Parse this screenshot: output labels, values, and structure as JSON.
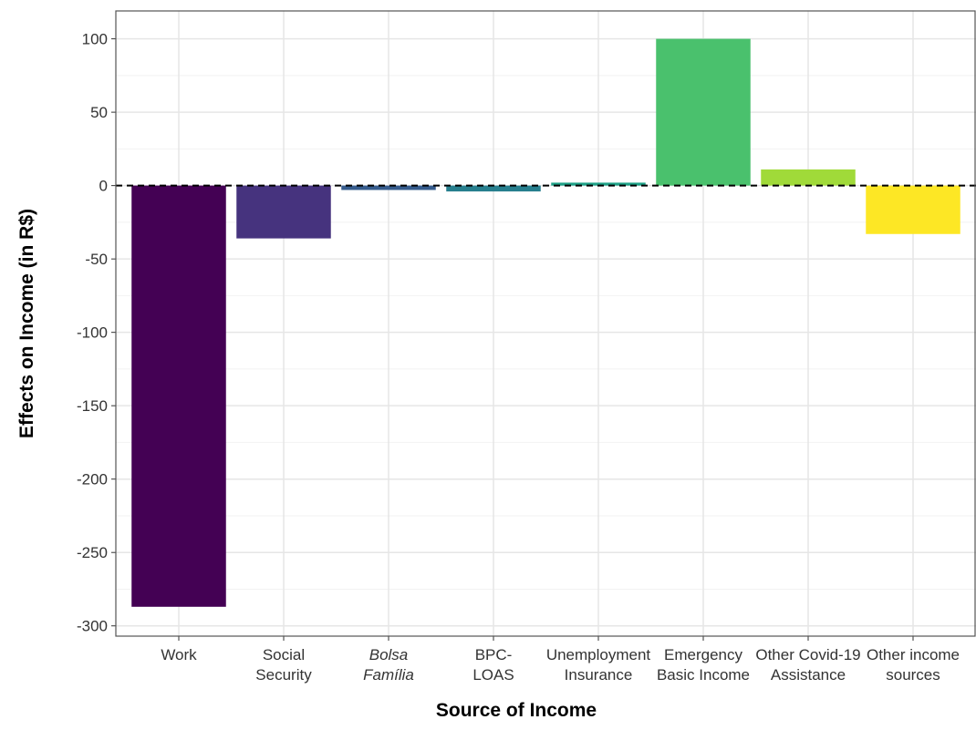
{
  "chart_data": {
    "type": "bar",
    "x_label": "Source of Income",
    "y_label": "Effects on Income (in R$)",
    "categories": [
      [
        "Work"
      ],
      [
        "Social",
        "Security"
      ],
      [
        "Bolsa",
        "Família"
      ],
      [
        "BPC-",
        "LOAS"
      ],
      [
        "Unemployment",
        "Insurance"
      ],
      [
        "Emergency",
        "Basic Income"
      ],
      [
        "Other Covid-19",
        "Assistance"
      ],
      [
        "Other income",
        "sources"
      ]
    ],
    "italic_categories": [
      2
    ],
    "values": [
      -287,
      -36,
      -3,
      -4,
      2,
      100,
      11,
      -33
    ],
    "colors": [
      "#440154",
      "#46337e",
      "#365c8d",
      "#277f8e",
      "#1fa187",
      "#4ac16d",
      "#a0da39",
      "#fde725"
    ],
    "ylim": [
      -307,
      119
    ],
    "yticks": [
      -300,
      -250,
      -200,
      -150,
      -100,
      -50,
      0,
      50,
      100
    ],
    "grid": true,
    "zero_line": "dashed"
  }
}
